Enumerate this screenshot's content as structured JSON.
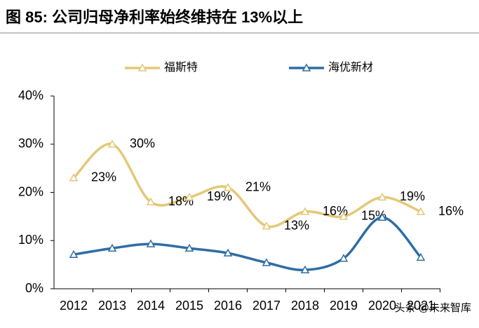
{
  "chart_data": {
    "type": "line",
    "title": "图 85:  公司归母净利率始终维持在 13%以上",
    "categories": [
      "2012",
      "2013",
      "2014",
      "2015",
      "2016",
      "2017",
      "2018",
      "2019",
      "2020",
      "2021"
    ],
    "series": [
      {
        "name": "福斯特",
        "color": "#E3C877",
        "values": [
          23,
          30,
          18,
          19,
          21,
          13,
          16,
          15,
          19,
          16
        ],
        "value_labels": [
          "23%",
          "30%",
          "18%",
          "19%",
          "21%",
          "13%",
          "16%",
          "15%",
          "19%",
          "16%"
        ]
      },
      {
        "name": "海优新材",
        "color": "#2E6DA4",
        "values": [
          7.1,
          8.4,
          9.3,
          8.4,
          7.4,
          5.4,
          3.9,
          6.3,
          14.8,
          6.5
        ]
      }
    ],
    "ylim": [
      0,
      40
    ],
    "yticks": [
      {
        "value": 0,
        "label": "0%"
      },
      {
        "value": 10,
        "label": "10%"
      },
      {
        "value": 20,
        "label": "20%"
      },
      {
        "value": 30,
        "label": "30%"
      },
      {
        "value": 40,
        "label": "40%"
      }
    ],
    "legend": "top",
    "watermark": "头条 @未来智库"
  }
}
